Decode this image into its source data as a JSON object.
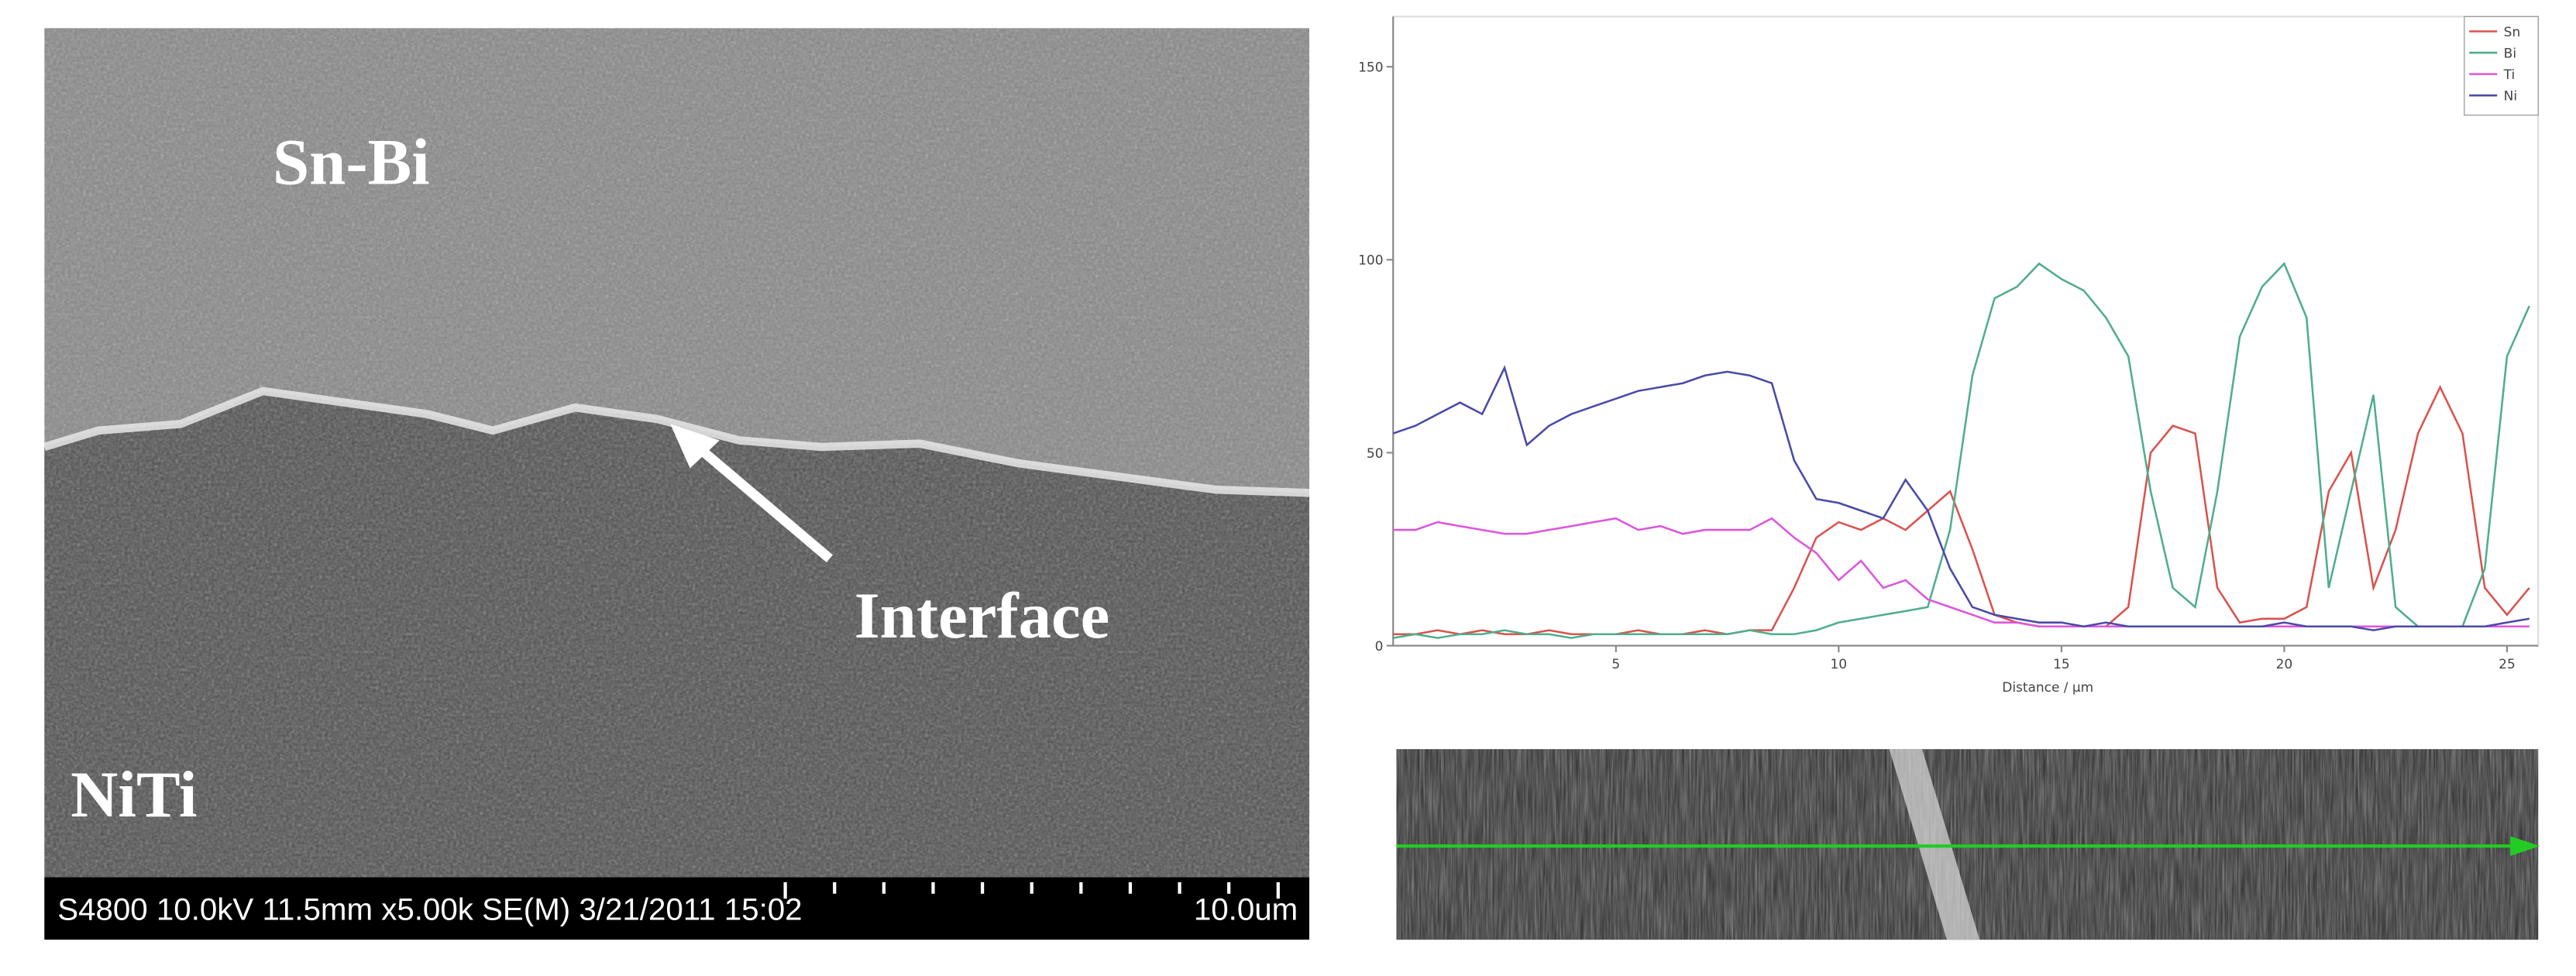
{
  "sem_image": {
    "labels": {
      "upper": "Sn-Bi",
      "interface": "Interface",
      "lower": "NiTi"
    },
    "footer": {
      "info": "S4800 10.0kV 11.5mm x5.00k SE(M) 3/21/2011 15:02",
      "scale": "10.0um"
    }
  },
  "chart_data": {
    "type": "line",
    "x_label": "Distance / µm",
    "x": [
      0,
      0.5,
      1,
      1.5,
      2,
      2.5,
      3,
      3.5,
      4,
      4.5,
      5,
      5.5,
      6,
      6.5,
      7,
      7.5,
      8,
      8.5,
      9,
      9.5,
      10,
      10.5,
      11,
      11.5,
      12,
      12.5,
      13,
      13.5,
      14,
      14.5,
      15,
      15.5,
      16,
      16.5,
      17,
      17.5,
      18,
      18.5,
      19,
      19.5,
      20,
      20.5,
      21,
      21.5,
      22,
      22.5,
      23,
      23.5,
      24,
      24.5,
      25,
      25.5
    ],
    "xlim": [
      0,
      25.7
    ],
    "xticks": [
      5,
      10,
      15,
      20,
      25
    ],
    "ylim": [
      0,
      163
    ],
    "yticks": [
      0,
      50,
      100,
      150
    ],
    "legend": "top-right",
    "series": [
      {
        "name": "Sn",
        "color": "#d9534f",
        "values": [
          3,
          3,
          4,
          3,
          4,
          3,
          3,
          4,
          3,
          3,
          3,
          4,
          3,
          3,
          4,
          3,
          4,
          4,
          15,
          28,
          32,
          30,
          33,
          30,
          35,
          40,
          25,
          8,
          6,
          5,
          5,
          5,
          5,
          10,
          50,
          57,
          55,
          15,
          6,
          7,
          7,
          10,
          40,
          50,
          15,
          30,
          55,
          67,
          55,
          15,
          8,
          15
        ]
      },
      {
        "name": "Bi",
        "color": "#4fae8c",
        "values": [
          2,
          3,
          2,
          3,
          3,
          4,
          3,
          3,
          2,
          3,
          3,
          3,
          3,
          3,
          3,
          3,
          4,
          3,
          3,
          4,
          6,
          7,
          8,
          9,
          10,
          30,
          70,
          90,
          93,
          99,
          95,
          92,
          85,
          75,
          40,
          15,
          10,
          40,
          80,
          93,
          99,
          85,
          15,
          40,
          65,
          10,
          5,
          5,
          5,
          20,
          75,
          88
        ]
      },
      {
        "name": "Ti",
        "color": "#dd55dd",
        "values": [
          30,
          30,
          32,
          31,
          30,
          29,
          29,
          30,
          31,
          32,
          33,
          30,
          31,
          29,
          30,
          30,
          30,
          33,
          28,
          24,
          17,
          22,
          15,
          17,
          12,
          10,
          8,
          6,
          6,
          5,
          5,
          5,
          5,
          5,
          5,
          5,
          5,
          5,
          5,
          5,
          5,
          5,
          5,
          5,
          5,
          5,
          5,
          5,
          5,
          5,
          5,
          5
        ]
      },
      {
        "name": "Ni",
        "color": "#4a4aa8",
        "values": [
          55,
          57,
          60,
          63,
          60,
          72,
          52,
          57,
          60,
          62,
          64,
          66,
          67,
          68,
          70,
          71,
          70,
          68,
          48,
          38,
          37,
          35,
          33,
          43,
          35,
          20,
          10,
          8,
          7,
          6,
          6,
          5,
          6,
          5,
          5,
          5,
          5,
          5,
          5,
          5,
          6,
          5,
          5,
          5,
          4,
          5,
          5,
          5,
          5,
          5,
          6,
          7
        ]
      }
    ]
  }
}
